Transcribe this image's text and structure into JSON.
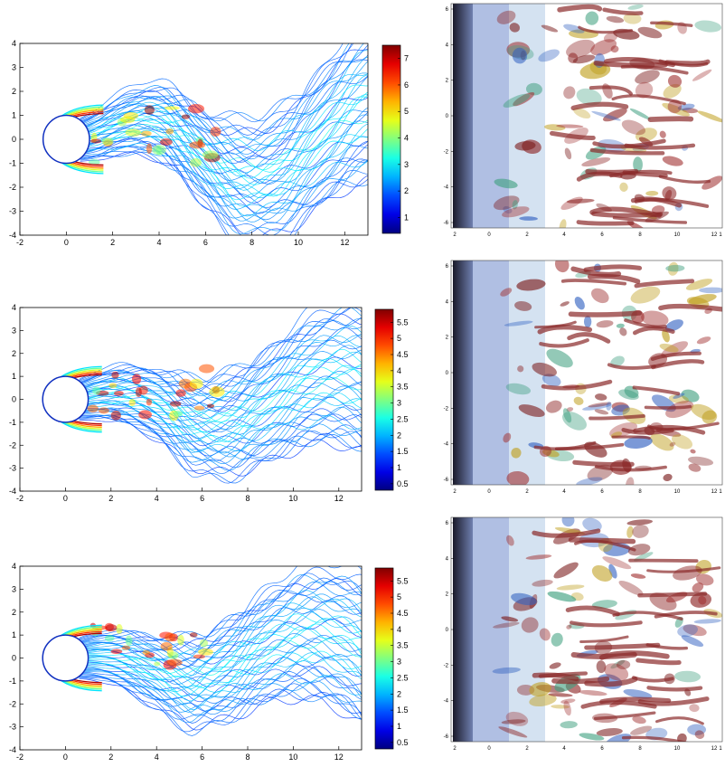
{
  "chart_data": [
    {
      "type": "contour",
      "panel": "row-1-contour",
      "xlim": [
        -2,
        13
      ],
      "ylim": [
        -4,
        4
      ],
      "x_ticks": [
        "-2",
        "0",
        "2",
        "4",
        "6",
        "8",
        "10",
        "12"
      ],
      "y_ticks": [
        "4",
        "3",
        "2",
        "1",
        "0",
        "-1",
        "-2",
        "-3",
        "-4"
      ],
      "colorbar": {
        "ticks": [
          "7",
          "6",
          "5",
          "4",
          "3",
          "2",
          "1"
        ],
        "range": [
          0.4,
          7.5
        ]
      }
    },
    {
      "type": "contour",
      "panel": "row-2-contour",
      "xlim": [
        -2,
        13
      ],
      "ylim": [
        -4,
        4
      ],
      "x_ticks": [
        "-2",
        "0",
        "2",
        "4",
        "6",
        "8",
        "10",
        "12"
      ],
      "y_ticks": [
        "4",
        "3",
        "2",
        "1",
        "0",
        "-1",
        "-2",
        "-3",
        "-4"
      ],
      "colorbar": {
        "ticks": [
          "5.5",
          "5",
          "4.5",
          "4",
          "3.5",
          "3",
          "2.5",
          "2",
          "1.5",
          "1",
          "0.5"
        ],
        "range": [
          0.3,
          5.9
        ]
      }
    },
    {
      "type": "contour",
      "panel": "row-3-contour",
      "xlim": [
        -2,
        13
      ],
      "ylim": [
        -4,
        4
      ],
      "x_ticks": [
        "-2",
        "0",
        "2",
        "4",
        "6",
        "8",
        "10",
        "12"
      ],
      "y_ticks": [
        "4",
        "3",
        "2",
        "1",
        "0",
        "-1",
        "-2",
        "-3",
        "-4"
      ],
      "colorbar": {
        "ticks": [
          "5.5",
          "5",
          "4.5",
          "4",
          "3.5",
          "3",
          "2.5",
          "2",
          "1.5",
          "1",
          "0.5"
        ],
        "range": [
          0.3,
          5.9
        ]
      }
    },
    {
      "type": "volume-render",
      "panel": "row-1-isosurface",
      "x_ticks": [
        "2",
        "0",
        "2",
        "4",
        "6",
        "8",
        "10",
        "12",
        "1"
      ],
      "y_ticks": [
        "6",
        "4",
        "2",
        "0",
        "-2",
        "-4",
        "-6"
      ]
    },
    {
      "type": "volume-render",
      "panel": "row-2-isosurface",
      "x_ticks": [
        "2",
        "0",
        "2",
        "4",
        "6",
        "8",
        "10",
        "12",
        "1"
      ],
      "y_ticks": [
        "6",
        "4",
        "2",
        "0",
        "-2",
        "-4",
        "-6"
      ]
    },
    {
      "type": "volume-render",
      "panel": "row-3-isosurface",
      "x_ticks": [
        "2",
        "0",
        "2",
        "4",
        "6",
        "8",
        "10",
        "12",
        "1"
      ],
      "y_ticks": [
        "6",
        "4",
        "2",
        "0",
        "-2",
        "-4",
        "-6"
      ]
    }
  ]
}
